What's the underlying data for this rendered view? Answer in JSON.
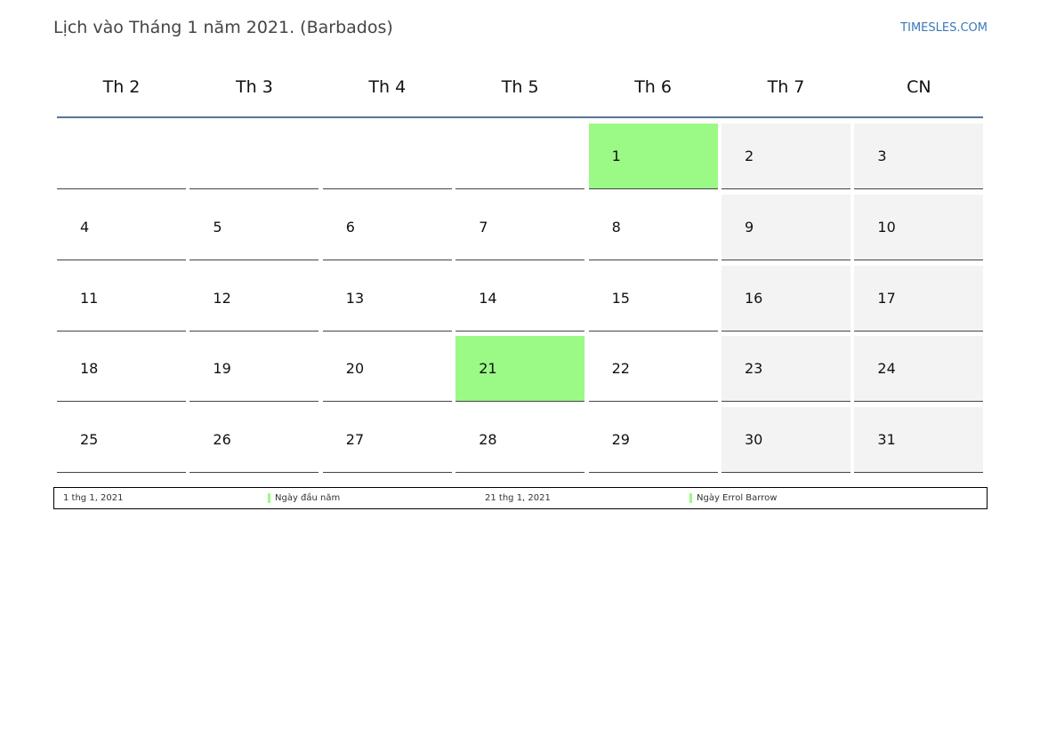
{
  "header": {
    "title": "Lịch vào Tháng 1 năm 2021. (Barbados)",
    "site": "TIMESLES.COM"
  },
  "weekdays": [
    "Th 2",
    "Th 3",
    "Th 4",
    "Th 5",
    "Th 6",
    "Th 7",
    "CN"
  ],
  "weeks": [
    [
      null,
      null,
      null,
      null,
      {
        "text": "1",
        "color": "#9afa85"
      },
      {
        "text": "2"
      },
      {
        "text": "3"
      }
    ],
    [
      {
        "text": "4"
      },
      {
        "text": "5"
      },
      {
        "text": "6"
      },
      {
        "text": "7"
      },
      {
        "text": "8"
      },
      {
        "text": "9"
      },
      {
        "text": "10"
      }
    ],
    [
      {
        "text": "11"
      },
      {
        "text": "12"
      },
      {
        "text": "13"
      },
      {
        "text": "14"
      },
      {
        "text": "15"
      },
      {
        "text": "16"
      },
      {
        "text": "17"
      }
    ],
    [
      {
        "text": "18"
      },
      {
        "text": "19"
      },
      {
        "text": "20"
      },
      {
        "text": "21",
        "color": "#9afa85"
      },
      {
        "text": "22"
      },
      {
        "text": "23"
      },
      {
        "text": "24"
      }
    ],
    [
      {
        "text": "25"
      },
      {
        "text": "26"
      },
      {
        "text": "27"
      },
      {
        "text": "28"
      },
      {
        "text": "29"
      },
      {
        "text": "30"
      },
      {
        "text": "31"
      }
    ]
  ],
  "holidays": [
    {
      "date": "1 thg 1, 2021",
      "name": "Ngày đầu năm",
      "color": "#9afa85"
    },
    {
      "date": "21 thg 1, 2021",
      "name": "Ngày Errol Barrow",
      "color": "#9afa85"
    }
  ]
}
